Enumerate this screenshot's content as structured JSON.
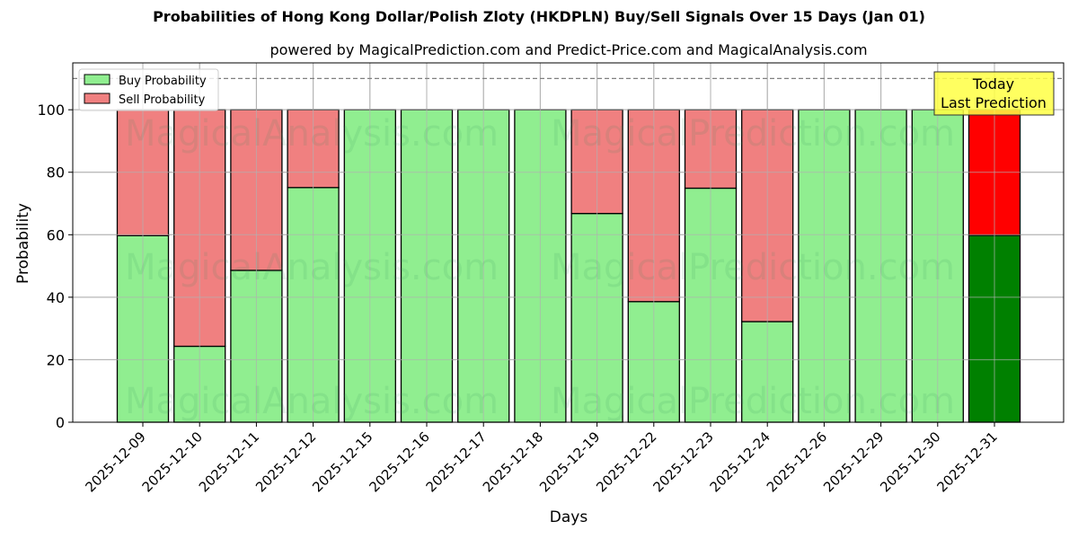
{
  "chart_data": {
    "type": "bar",
    "stacked": true,
    "title": "Probabilities of Hong Kong Dollar/Polish Zloty (HKDPLN) Buy/Sell Signals Over 15 Days (Jan 01)",
    "subtitle": "powered by MagicalPrediction.com and Predict-Price.com and MagicalAnalysis.com",
    "xlabel": "Days",
    "ylabel": "Probability",
    "ylim": [
      0,
      115
    ],
    "yticks": [
      0,
      20,
      40,
      60,
      80,
      100
    ],
    "grid": true,
    "reference_line": {
      "y": 110,
      "style": "dashed",
      "color": "#808080"
    },
    "categories": [
      "2025-12-09",
      "2025-12-10",
      "2025-12-11",
      "2025-12-12",
      "2025-12-15",
      "2025-12-16",
      "2025-12-17",
      "2025-12-18",
      "2025-12-19",
      "2025-12-22",
      "2025-12-23",
      "2025-12-24",
      "2025-12-26",
      "2025-12-29",
      "2025-12-30",
      "2025-12-31"
    ],
    "series": [
      {
        "name": "Buy Probability",
        "color": "#90ee90",
        "values": [
          59.7,
          24.3,
          48.6,
          75.1,
          100,
          100,
          100,
          100,
          66.8,
          38.6,
          74.9,
          32.2,
          100,
          100,
          100,
          59.8
        ]
      },
      {
        "name": "Sell Probability",
        "color": "#f08080",
        "values": [
          40.3,
          75.7,
          51.4,
          24.9,
          0,
          0,
          0,
          0,
          33.2,
          61.4,
          25.1,
          67.8,
          0,
          0,
          0,
          40.2
        ]
      }
    ],
    "highlight": {
      "index": 15,
      "buy_color": "#008000",
      "sell_color": "#ff0000"
    },
    "legend": {
      "position": "upper left",
      "entries": [
        "Buy Probability",
        "Sell Probability"
      ]
    },
    "annotation": {
      "text_line1": "Today",
      "text_line2": "Last Prediction",
      "background": "#ffff44"
    },
    "watermarks": [
      "MagicalAnalysis.com",
      "MagicalPrediction.com"
    ]
  }
}
